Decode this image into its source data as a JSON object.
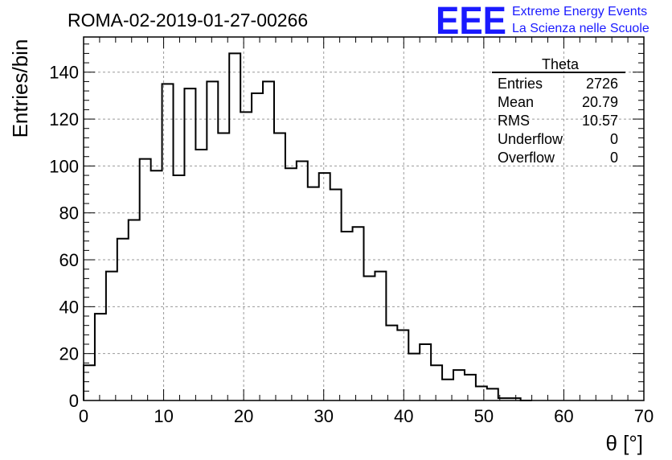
{
  "header": {
    "run_title": "ROMA-02-2019-01-27-00266",
    "logo_mark": "EEE",
    "logo_line1": "Extreme Energy Events",
    "logo_line2": "La Scienza nelle Scuole"
  },
  "stats_box": {
    "title": "Theta",
    "rows": [
      {
        "label": "Entries",
        "value": "2726"
      },
      {
        "label": "Mean",
        "value": "20.79"
      },
      {
        "label": "RMS",
        "value": "10.57"
      },
      {
        "label": "Underflow",
        "value": "0"
      },
      {
        "label": "Overflow",
        "value": "0"
      }
    ]
  },
  "colors": {
    "logo": "#1a1aff",
    "histogram_line": "#000000",
    "grid": "#9a9a9a"
  },
  "chart_data": {
    "type": "bar",
    "histogram_style": "step",
    "title": "ROMA-02-2019-01-27-00266",
    "xlabel": "θ [°]",
    "ylabel": "Entries/bin",
    "xlim": [
      0,
      70
    ],
    "ylim": [
      0,
      155
    ],
    "grid": true,
    "x_ticks": [
      0,
      10,
      20,
      30,
      40,
      50,
      60,
      70
    ],
    "y_ticks": [
      0,
      20,
      40,
      60,
      80,
      100,
      120,
      140
    ],
    "bin_width": 1.4,
    "bin_edges_start": 0,
    "values": [
      15,
      37,
      55,
      69,
      77,
      103,
      98,
      135,
      96,
      133,
      107,
      136,
      114,
      148,
      123,
      131,
      136,
      114,
      99,
      102,
      91,
      97,
      90,
      72,
      74,
      53,
      55,
      32,
      30,
      20,
      24,
      15,
      9,
      13,
      11,
      6,
      5,
      1,
      1,
      0
    ],
    "stats_legend_placement": "top-right"
  }
}
